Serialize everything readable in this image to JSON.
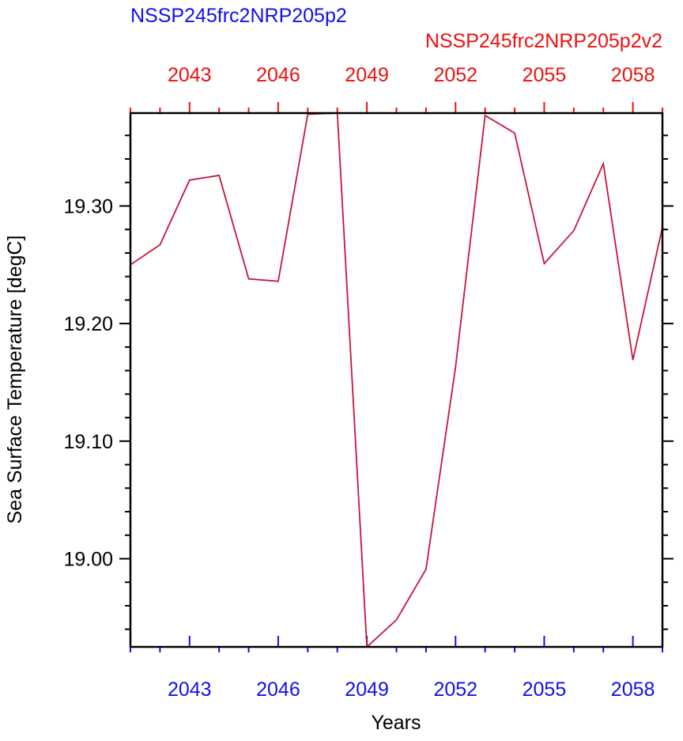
{
  "chart_data": {
    "type": "line",
    "title": "NSSP245frc2NRP205p2",
    "title_color": "#1010ee",
    "subtitle": "NSSP245frc2NRP205p2v2",
    "subtitle_color": "#ee1010",
    "xlabel": "Years",
    "ylabel": "Sea Surface Temperature [degC]",
    "x": [
      2041,
      2042,
      2043,
      2044,
      2045,
      2046,
      2047,
      2048,
      2049,
      2050,
      2051,
      2052,
      2053,
      2054,
      2055,
      2056,
      2057,
      2058,
      2059
    ],
    "values": [
      19.25,
      19.267,
      19.322,
      19.326,
      19.238,
      19.236,
      19.378,
      19.379,
      18.925,
      18.948,
      18.991,
      19.163,
      19.377,
      19.362,
      19.251,
      19.279,
      19.336,
      19.169,
      19.282
    ],
    "color": "#c8143c",
    "xlim": [
      2041,
      2059
    ],
    "ylim": [
      18.925,
      19.379
    ],
    "xticks": [
      2043,
      2046,
      2049,
      2052,
      2055,
      2058
    ],
    "xtick_color": "#1010ee",
    "x2ticks": [
      2043,
      2046,
      2049,
      2052,
      2055,
      2058
    ],
    "x2tick_color": "#ee1010",
    "xminorticks": [
      2041,
      2042,
      2044,
      2045,
      2047,
      2048,
      2050,
      2051,
      2053,
      2054,
      2056,
      2057,
      2059
    ],
    "yticks": [
      {
        "value": 19.0,
        "label": "19.00"
      },
      {
        "value": 19.1,
        "label": "19.10"
      },
      {
        "value": 19.2,
        "label": "19.20"
      },
      {
        "value": 19.3,
        "label": "19.30"
      }
    ],
    "yminorticks": [
      18.94,
      18.96,
      18.98,
      19.02,
      19.04,
      19.06,
      19.08,
      19.12,
      19.14,
      19.16,
      19.18,
      19.22,
      19.24,
      19.26,
      19.28,
      19.32,
      19.34,
      19.36
    ],
    "grid": false
  }
}
